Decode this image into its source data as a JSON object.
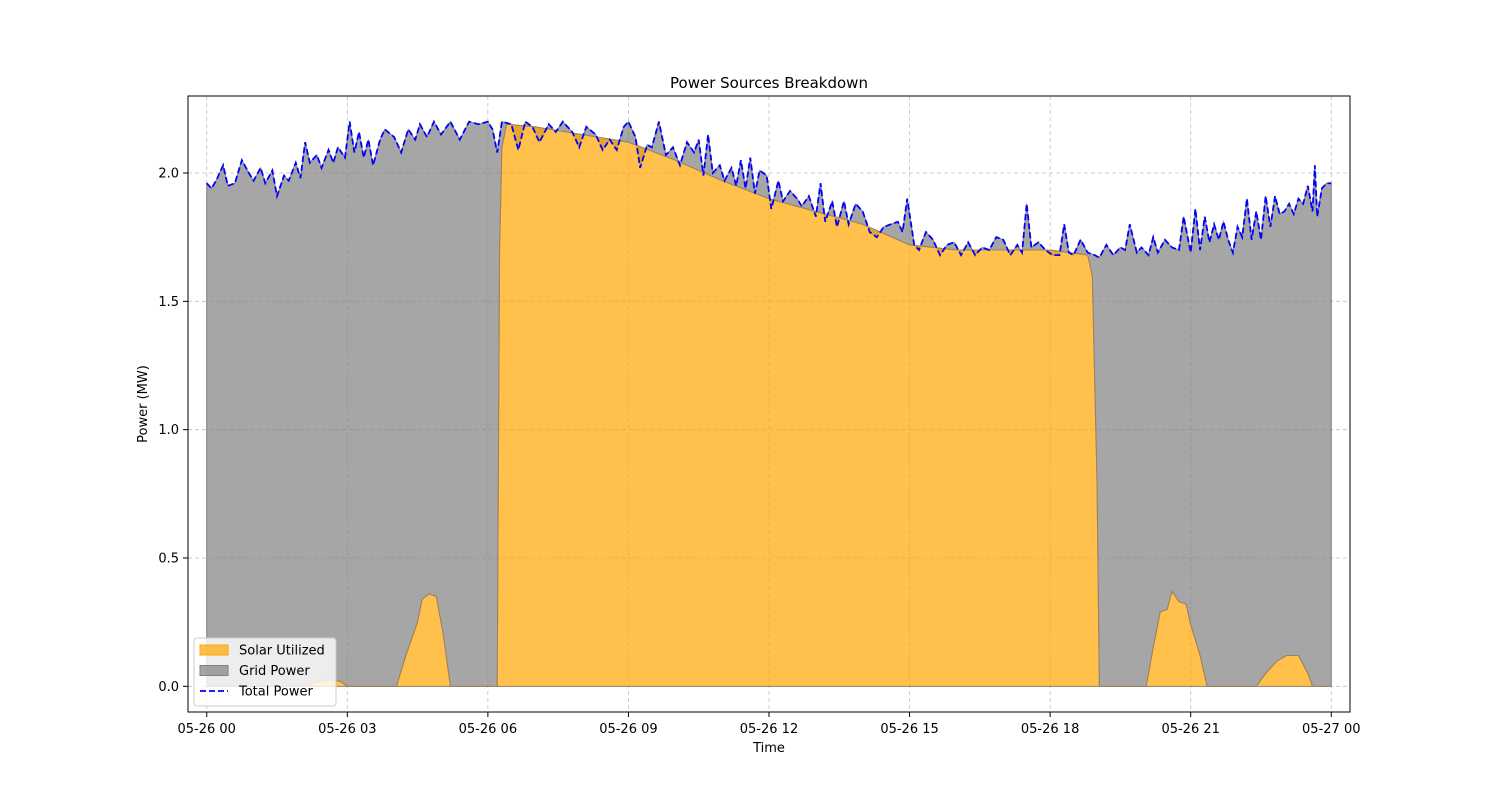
{
  "chart_data": {
    "type": "area",
    "title": "Power Sources Breakdown",
    "xlabel": "Time",
    "ylabel": "Power (MW)",
    "xlim_hours": [
      -0.4,
      24.4
    ],
    "ylim": [
      -0.1,
      2.3
    ],
    "x_ticks": [
      {
        "hour": 0,
        "label": "05-26 00"
      },
      {
        "hour": 3,
        "label": "05-26 03"
      },
      {
        "hour": 6,
        "label": "05-26 06"
      },
      {
        "hour": 9,
        "label": "05-26 09"
      },
      {
        "hour": 12,
        "label": "05-26 12"
      },
      {
        "hour": 15,
        "label": "05-26 15"
      },
      {
        "hour": 18,
        "label": "05-26 18"
      },
      {
        "hour": 21,
        "label": "05-26 21"
      },
      {
        "hour": 24,
        "label": "05-27 00"
      }
    ],
    "y_ticks": [
      {
        "value": 0.0,
        "label": "0.0"
      },
      {
        "value": 0.5,
        "label": "0.5"
      },
      {
        "value": 1.0,
        "label": "1.0"
      },
      {
        "value": 1.5,
        "label": "1.5"
      },
      {
        "value": 2.0,
        "label": "2.0"
      }
    ],
    "grid": true,
    "legend_position": "lower-left",
    "legend": [
      {
        "label": "Solar Utilized",
        "kind": "patch",
        "color": "#ffa500"
      },
      {
        "label": "Grid Power",
        "kind": "patch",
        "color": "#808080"
      },
      {
        "label": "Total Power",
        "kind": "line",
        "color": "#0000ff"
      }
    ],
    "colors": {
      "solar": "#ffa500",
      "grid": "#808080",
      "total": "#0000ff"
    },
    "solar": [
      [
        0,
        0
      ],
      [
        2.1,
        0
      ],
      [
        2.3,
        0.015
      ],
      [
        2.6,
        0.025
      ],
      [
        2.85,
        0.02
      ],
      [
        3.0,
        0
      ],
      [
        4.05,
        0
      ],
      [
        4.25,
        0.12
      ],
      [
        4.5,
        0.25
      ],
      [
        4.6,
        0.34
      ],
      [
        4.75,
        0.36
      ],
      [
        4.9,
        0.35
      ],
      [
        5.05,
        0.2
      ],
      [
        5.2,
        0
      ],
      [
        6.2,
        0
      ],
      [
        6.25,
        1.7
      ],
      [
        6.3,
        2.1
      ],
      [
        6.4,
        2.19
      ],
      [
        7.0,
        2.18
      ],
      [
        8.0,
        2.15
      ],
      [
        9.0,
        2.12
      ],
      [
        10.0,
        2.05
      ],
      [
        11.0,
        1.97
      ],
      [
        12.0,
        1.9
      ],
      [
        13.0,
        1.85
      ],
      [
        14.0,
        1.8
      ],
      [
        15.0,
        1.72
      ],
      [
        16.0,
        1.7
      ],
      [
        17.0,
        1.7
      ],
      [
        18.0,
        1.7
      ],
      [
        18.8,
        1.68
      ],
      [
        18.9,
        1.6
      ],
      [
        19.0,
        0.8
      ],
      [
        19.05,
        0
      ],
      [
        20.05,
        0
      ],
      [
        20.2,
        0.15
      ],
      [
        20.35,
        0.29
      ],
      [
        20.5,
        0.3
      ],
      [
        20.6,
        0.37
      ],
      [
        20.75,
        0.33
      ],
      [
        20.9,
        0.32
      ],
      [
        21.0,
        0.24
      ],
      [
        21.2,
        0.12
      ],
      [
        21.35,
        0
      ],
      [
        22.4,
        0
      ],
      [
        22.6,
        0.05
      ],
      [
        22.85,
        0.1
      ],
      [
        23.05,
        0.12
      ],
      [
        23.3,
        0.12
      ],
      [
        23.5,
        0.05
      ],
      [
        23.6,
        0
      ],
      [
        24.0,
        0
      ]
    ],
    "total": [
      [
        0,
        1.96
      ],
      [
        0.1,
        1.94
      ],
      [
        0.2,
        1.97
      ],
      [
        0.35,
        2.03
      ],
      [
        0.45,
        1.95
      ],
      [
        0.6,
        1.96
      ],
      [
        0.75,
        2.05
      ],
      [
        0.9,
        2.0
      ],
      [
        1.0,
        1.97
      ],
      [
        1.15,
        2.02
      ],
      [
        1.25,
        1.96
      ],
      [
        1.4,
        2.01
      ],
      [
        1.5,
        1.91
      ],
      [
        1.65,
        1.99
      ],
      [
        1.75,
        1.97
      ],
      [
        1.9,
        2.04
      ],
      [
        2.0,
        1.98
      ],
      [
        2.1,
        2.12
      ],
      [
        2.2,
        2.04
      ],
      [
        2.35,
        2.07
      ],
      [
        2.45,
        2.02
      ],
      [
        2.6,
        2.09
      ],
      [
        2.7,
        2.04
      ],
      [
        2.8,
        2.1
      ],
      [
        2.95,
        2.06
      ],
      [
        3.05,
        2.2
      ],
      [
        3.15,
        2.08
      ],
      [
        3.25,
        2.16
      ],
      [
        3.35,
        2.06
      ],
      [
        3.45,
        2.13
      ],
      [
        3.55,
        2.03
      ],
      [
        3.7,
        2.13
      ],
      [
        3.8,
        2.17
      ],
      [
        4.0,
        2.14
      ],
      [
        4.15,
        2.08
      ],
      [
        4.3,
        2.17
      ],
      [
        4.45,
        2.13
      ],
      [
        4.55,
        2.19
      ],
      [
        4.7,
        2.14
      ],
      [
        4.85,
        2.2
      ],
      [
        5.0,
        2.15
      ],
      [
        5.2,
        2.2
      ],
      [
        5.4,
        2.13
      ],
      [
        5.6,
        2.2
      ],
      [
        5.8,
        2.19
      ],
      [
        6.0,
        2.2
      ],
      [
        6.1,
        2.17
      ],
      [
        6.2,
        2.08
      ],
      [
        6.3,
        2.2
      ],
      [
        6.5,
        2.19
      ],
      [
        6.65,
        2.09
      ],
      [
        6.8,
        2.2
      ],
      [
        6.95,
        2.18
      ],
      [
        7.1,
        2.12
      ],
      [
        7.3,
        2.19
      ],
      [
        7.45,
        2.16
      ],
      [
        7.6,
        2.2
      ],
      [
        7.8,
        2.16
      ],
      [
        7.95,
        2.1
      ],
      [
        8.1,
        2.18
      ],
      [
        8.3,
        2.15
      ],
      [
        8.45,
        2.09
      ],
      [
        8.6,
        2.13
      ],
      [
        8.75,
        2.09
      ],
      [
        8.9,
        2.18
      ],
      [
        9.0,
        2.2
      ],
      [
        9.15,
        2.14
      ],
      [
        9.25,
        2.02
      ],
      [
        9.4,
        2.11
      ],
      [
        9.5,
        2.1
      ],
      [
        9.65,
        2.2
      ],
      [
        9.8,
        2.07
      ],
      [
        9.95,
        2.1
      ],
      [
        10.1,
        2.03
      ],
      [
        10.25,
        2.12
      ],
      [
        10.4,
        2.08
      ],
      [
        10.5,
        2.13
      ],
      [
        10.6,
        1.99
      ],
      [
        10.7,
        2.15
      ],
      [
        10.8,
        2.0
      ],
      [
        10.95,
        2.03
      ],
      [
        11.05,
        1.97
      ],
      [
        11.2,
        2.02
      ],
      [
        11.3,
        1.95
      ],
      [
        11.4,
        2.05
      ],
      [
        11.5,
        1.94
      ],
      [
        11.6,
        2.06
      ],
      [
        11.7,
        1.92
      ],
      [
        11.8,
        2.01
      ],
      [
        11.95,
        1.99
      ],
      [
        12.05,
        1.86
      ],
      [
        12.2,
        1.97
      ],
      [
        12.3,
        1.89
      ],
      [
        12.45,
        1.93
      ],
      [
        12.6,
        1.9
      ],
      [
        12.7,
        1.87
      ],
      [
        12.85,
        1.91
      ],
      [
        13.0,
        1.83
      ],
      [
        13.1,
        1.96
      ],
      [
        13.2,
        1.81
      ],
      [
        13.35,
        1.89
      ],
      [
        13.45,
        1.79
      ],
      [
        13.6,
        1.89
      ],
      [
        13.7,
        1.8
      ],
      [
        13.85,
        1.88
      ],
      [
        14.0,
        1.85
      ],
      [
        14.15,
        1.77
      ],
      [
        14.3,
        1.75
      ],
      [
        14.45,
        1.79
      ],
      [
        14.6,
        1.8
      ],
      [
        14.75,
        1.81
      ],
      [
        14.85,
        1.77
      ],
      [
        14.95,
        1.9
      ],
      [
        15.1,
        1.72
      ],
      [
        15.2,
        1.7
      ],
      [
        15.35,
        1.77
      ],
      [
        15.5,
        1.74
      ],
      [
        15.65,
        1.68
      ],
      [
        15.8,
        1.72
      ],
      [
        15.95,
        1.73
      ],
      [
        16.1,
        1.68
      ],
      [
        16.25,
        1.73
      ],
      [
        16.4,
        1.68
      ],
      [
        16.55,
        1.71
      ],
      [
        16.7,
        1.7
      ],
      [
        16.85,
        1.75
      ],
      [
        17.0,
        1.74
      ],
      [
        17.15,
        1.68
      ],
      [
        17.3,
        1.72
      ],
      [
        17.4,
        1.69
      ],
      [
        17.5,
        1.88
      ],
      [
        17.6,
        1.71
      ],
      [
        17.75,
        1.73
      ],
      [
        17.9,
        1.7
      ],
      [
        18.05,
        1.68
      ],
      [
        18.2,
        1.68
      ],
      [
        18.3,
        1.8
      ],
      [
        18.4,
        1.69
      ],
      [
        18.5,
        1.68
      ],
      [
        18.65,
        1.74
      ],
      [
        18.8,
        1.69
      ],
      [
        18.95,
        1.68
      ],
      [
        19.05,
        1.67
      ],
      [
        19.2,
        1.72
      ],
      [
        19.35,
        1.68
      ],
      [
        19.5,
        1.71
      ],
      [
        19.6,
        1.7
      ],
      [
        19.7,
        1.8
      ],
      [
        19.85,
        1.69
      ],
      [
        19.95,
        1.71
      ],
      [
        20.1,
        1.68
      ],
      [
        20.2,
        1.75
      ],
      [
        20.3,
        1.69
      ],
      [
        20.45,
        1.74
      ],
      [
        20.6,
        1.71
      ],
      [
        20.75,
        1.7
      ],
      [
        20.85,
        1.83
      ],
      [
        21.0,
        1.69
      ],
      [
        21.1,
        1.86
      ],
      [
        21.2,
        1.7
      ],
      [
        21.3,
        1.83
      ],
      [
        21.4,
        1.73
      ],
      [
        21.5,
        1.8
      ],
      [
        21.6,
        1.74
      ],
      [
        21.7,
        1.81
      ],
      [
        21.8,
        1.74
      ],
      [
        21.9,
        1.69
      ],
      [
        22.0,
        1.79
      ],
      [
        22.1,
        1.75
      ],
      [
        22.2,
        1.9
      ],
      [
        22.3,
        1.74
      ],
      [
        22.4,
        1.85
      ],
      [
        22.5,
        1.74
      ],
      [
        22.6,
        1.91
      ],
      [
        22.7,
        1.79
      ],
      [
        22.8,
        1.91
      ],
      [
        22.9,
        1.84
      ],
      [
        23.0,
        1.85
      ],
      [
        23.1,
        1.88
      ],
      [
        23.2,
        1.84
      ],
      [
        23.3,
        1.9
      ],
      [
        23.4,
        1.88
      ],
      [
        23.5,
        1.95
      ],
      [
        23.6,
        1.85
      ],
      [
        23.65,
        2.03
      ],
      [
        23.7,
        1.83
      ],
      [
        23.8,
        1.94
      ],
      [
        23.9,
        1.96
      ],
      [
        24.0,
        1.96
      ]
    ]
  }
}
